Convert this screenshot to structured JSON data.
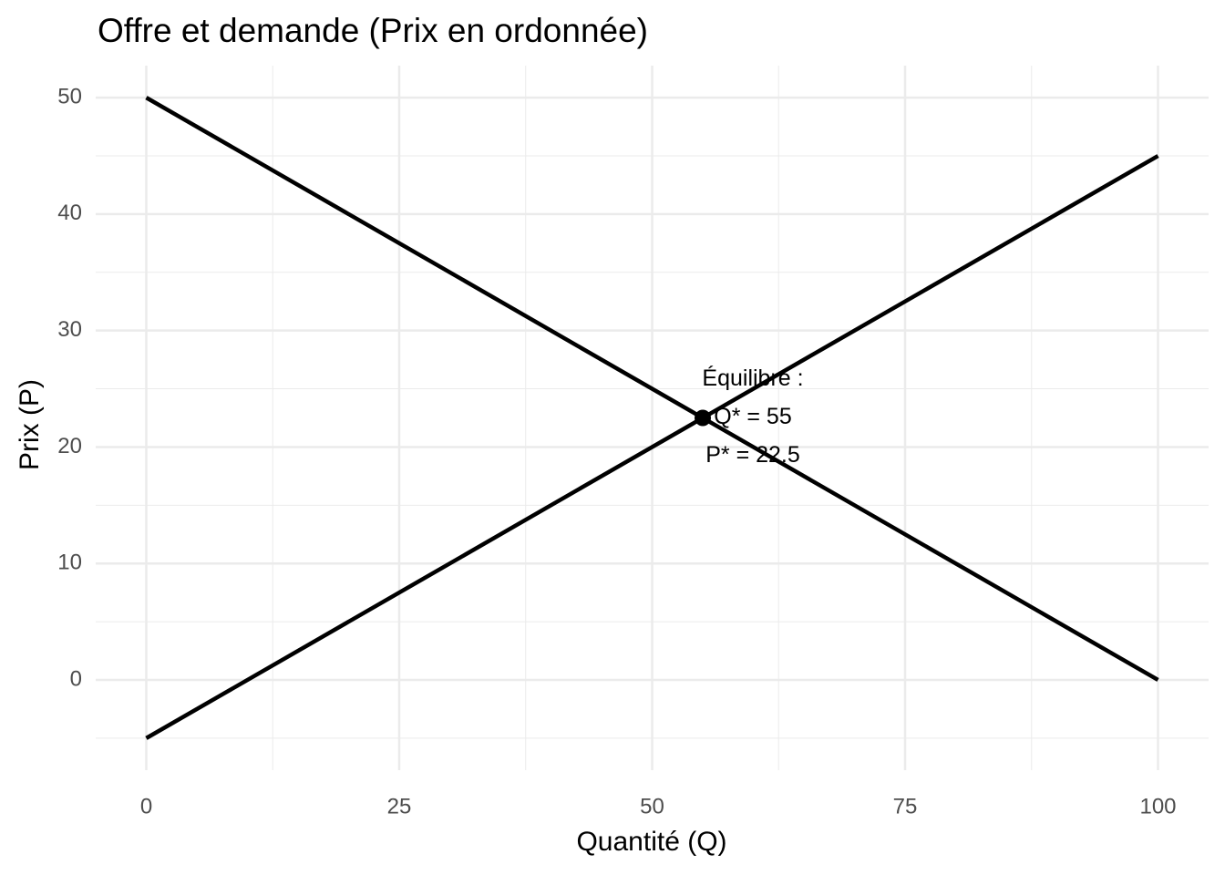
{
  "chart_data": {
    "type": "line",
    "title": "Offre et demande (Prix en ordonnée)",
    "x_label": "Quantité (Q)",
    "y_label": "Prix (P)",
    "x": [
      0,
      100
    ],
    "series": [
      {
        "color": "#000000",
        "values": [
          50,
          0
        ]
      },
      {
        "color": "#000000",
        "values": [
          -5,
          45
        ]
      }
    ],
    "points": {
      "x": [
        55
      ],
      "values": [
        22.5
      ],
      "color": "#000000"
    },
    "annotation": [
      "Équilibre :",
      "Q* = 55",
      "P* = 22.5"
    ],
    "xlim": [
      -5,
      105
    ],
    "ylim": [
      -7.75,
      52.75
    ],
    "xticks": [
      0,
      25,
      50,
      75,
      100
    ],
    "yticks": [
      0,
      10,
      20,
      30,
      40,
      50
    ],
    "xminor": [
      12.5,
      37.5,
      62.5,
      87.5
    ],
    "yminor": [
      -5,
      5,
      15,
      25,
      35,
      45
    ],
    "grid": true
  }
}
